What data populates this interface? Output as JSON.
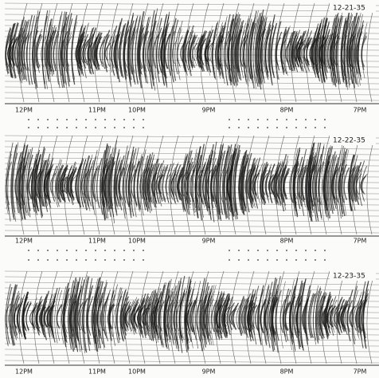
{
  "panels": [
    {
      "date": "12-21-35",
      "time_labels": [
        "12PM",
        "11PM",
        "10PM",
        "9PM",
        "8PM",
        "7PM"
      ]
    },
    {
      "date": "12-22-35",
      "time_labels": [
        "12PM",
        "11PM",
        "10PM",
        "9PM",
        "8PM",
        "7PM"
      ]
    },
    {
      "date": "12-23-35",
      "time_labels": [
        "12PM",
        "11PM",
        "10PM",
        "9PM",
        "8PM",
        "7PM"
      ]
    }
  ]
}
